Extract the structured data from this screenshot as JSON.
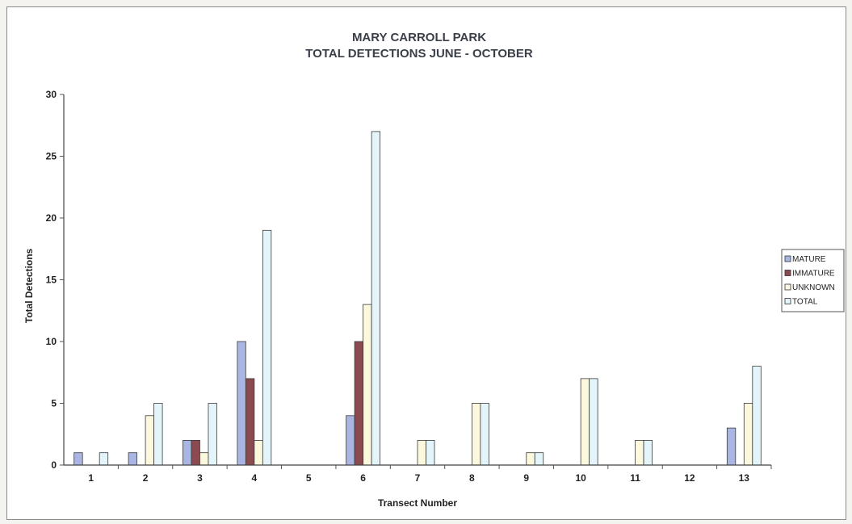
{
  "chart_data": {
    "type": "bar",
    "title": "MARY CARROLL PARK",
    "subtitle": "TOTAL DETECTIONS JUNE - OCTOBER",
    "xlabel": "Transect Number",
    "ylabel": "Total Detections",
    "ylim": [
      0,
      30
    ],
    "yticks": [
      0,
      5,
      10,
      15,
      20,
      25,
      30
    ],
    "grid": false,
    "legend_position": "right",
    "categories": [
      "1",
      "2",
      "3",
      "4",
      "5",
      "6",
      "7",
      "8",
      "9",
      "10",
      "11",
      "12",
      "13"
    ],
    "series": [
      {
        "name": "MATURE",
        "color": "#a9b6e3",
        "values": [
          1,
          1,
          2,
          10,
          0,
          4,
          0,
          0,
          0,
          0,
          0,
          0,
          3
        ]
      },
      {
        "name": "IMMATURE",
        "color": "#8a4a4f",
        "values": [
          0,
          0,
          2,
          7,
          0,
          10,
          0,
          0,
          0,
          0,
          0,
          0,
          0
        ]
      },
      {
        "name": "UNKNOWN",
        "color": "#fbf8de",
        "values": [
          0,
          4,
          1,
          2,
          0,
          13,
          2,
          5,
          1,
          7,
          2,
          0,
          5
        ]
      },
      {
        "name": "TOTAL",
        "color": "#e3f5fb",
        "values": [
          1,
          5,
          5,
          19,
          0,
          27,
          2,
          5,
          1,
          7,
          2,
          0,
          8
        ]
      }
    ]
  }
}
